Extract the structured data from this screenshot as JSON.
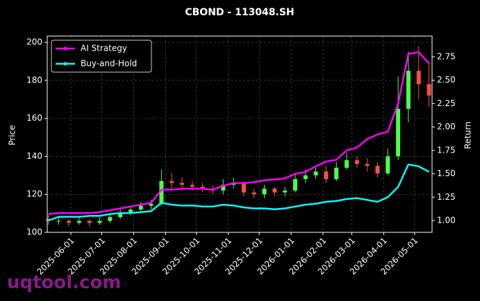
{
  "chart_data": {
    "type": "candlestick",
    "title": "CBOND - 113048.SH",
    "ylabel": "Price",
    "y2label": "Return",
    "watermark": "uqtool.com",
    "legend": "upper left",
    "grid": true,
    "up_color": "#4dff4d",
    "down_color": "#ff4d4d",
    "x": [
      "2025-05-10",
      "2025-05-20",
      "2025-05-30",
      "2025-06-09",
      "2025-06-19",
      "2025-06-29",
      "2025-07-09",
      "2025-07-19",
      "2025-07-29",
      "2025-08-08",
      "2025-08-18",
      "2025-08-28",
      "2025-09-07",
      "2025-09-17",
      "2025-09-27",
      "2025-10-07",
      "2025-10-17",
      "2025-10-27",
      "2025-11-06",
      "2025-11-16",
      "2025-11-26",
      "2025-12-06",
      "2025-12-16",
      "2025-12-26",
      "2026-01-05",
      "2026-01-15",
      "2026-01-25",
      "2026-02-04",
      "2026-02-14",
      "2026-02-24",
      "2026-03-06",
      "2026-03-16",
      "2026-03-26",
      "2026-04-05",
      "2026-04-15",
      "2026-04-25",
      "2026-05-05",
      "2026-05-15"
    ],
    "open": [
      107,
      106,
      106,
      105,
      106,
      105,
      106,
      108,
      110,
      112,
      114,
      115,
      127,
      126,
      125,
      124,
      123,
      122,
      125,
      126,
      121,
      120,
      123,
      121,
      122,
      128,
      130,
      132,
      128,
      134,
      138,
      136,
      135,
      131,
      140,
      165,
      185,
      178
    ],
    "high": [
      109,
      108,
      107,
      108,
      107,
      108,
      110,
      112,
      114,
      116,
      117,
      133,
      131,
      129,
      127,
      126,
      125,
      128,
      129,
      127,
      123,
      125,
      124,
      124,
      131,
      133,
      134,
      135,
      137,
      142,
      140,
      139,
      137,
      144,
      182,
      195,
      198,
      190
    ],
    "low": [
      104,
      104,
      103,
      104,
      103,
      104,
      105,
      107,
      109,
      111,
      112,
      114,
      123,
      122,
      122,
      121,
      120,
      120,
      123,
      119,
      118,
      118,
      119,
      119,
      121,
      126,
      128,
      126,
      127,
      133,
      134,
      132,
      129,
      130,
      138,
      158,
      170,
      166
    ],
    "close": [
      106,
      106,
      105,
      106,
      105,
      106,
      108,
      110,
      112,
      114,
      115,
      127,
      126,
      125,
      124,
      123,
      122,
      125,
      126,
      121,
      120,
      123,
      121,
      122,
      128,
      130,
      132,
      128,
      134,
      138,
      136,
      135,
      131,
      140,
      165,
      185,
      178,
      172
    ],
    "series": [
      {
        "name": "AI Strategy",
        "color": "#ff00ff",
        "axis": "y2",
        "values": [
          1.07,
          1.08,
          1.08,
          1.08,
          1.08,
          1.09,
          1.11,
          1.13,
          1.15,
          1.17,
          1.19,
          1.33,
          1.33,
          1.34,
          1.34,
          1.34,
          1.33,
          1.37,
          1.4,
          1.4,
          1.41,
          1.43,
          1.44,
          1.45,
          1.5,
          1.52,
          1.58,
          1.63,
          1.65,
          1.75,
          1.78,
          1.87,
          1.92,
          1.95,
          2.25,
          2.78,
          2.8,
          2.68
        ]
      },
      {
        "name": "Buy-and-Hold",
        "color": "#00ffff",
        "axis": "y2",
        "values": [
          1.0,
          1.04,
          1.04,
          1.04,
          1.05,
          1.05,
          1.07,
          1.08,
          1.08,
          1.09,
          1.1,
          1.19,
          1.17,
          1.16,
          1.16,
          1.15,
          1.15,
          1.17,
          1.16,
          1.14,
          1.13,
          1.13,
          1.12,
          1.13,
          1.15,
          1.17,
          1.18,
          1.2,
          1.21,
          1.23,
          1.24,
          1.22,
          1.2,
          1.25,
          1.36,
          1.6,
          1.58,
          1.52
        ]
      }
    ],
    "xlim": [
      "2025-05-09",
      "2026-05-18"
    ],
    "xticks": [
      "2025-06-01",
      "2025-07-01",
      "2025-08-01",
      "2025-09-01",
      "2025-10-01",
      "2025-11-01",
      "2025-12-01",
      "2026-01-01",
      "2026-02-01",
      "2026-03-01",
      "2026-04-01",
      "2026-05-01"
    ],
    "ylim": [
      100,
      203.3
    ],
    "yticks": [
      100,
      120,
      140,
      160,
      180,
      200
    ],
    "y2lim": [
      0.874,
      2.972
    ],
    "y2ticks": [
      {
        "value": 1,
        "label": "1.00"
      },
      {
        "value": 1.25,
        "label": "1.25"
      },
      {
        "value": 1.5,
        "label": "1.50"
      },
      {
        "value": 1.75,
        "label": "1.75"
      },
      {
        "value": 2,
        "label": "2.00"
      },
      {
        "value": 2.25,
        "label": "2.25"
      },
      {
        "value": 2.5,
        "label": "2.50"
      },
      {
        "value": 2.75,
        "label": "2.75"
      }
    ]
  }
}
